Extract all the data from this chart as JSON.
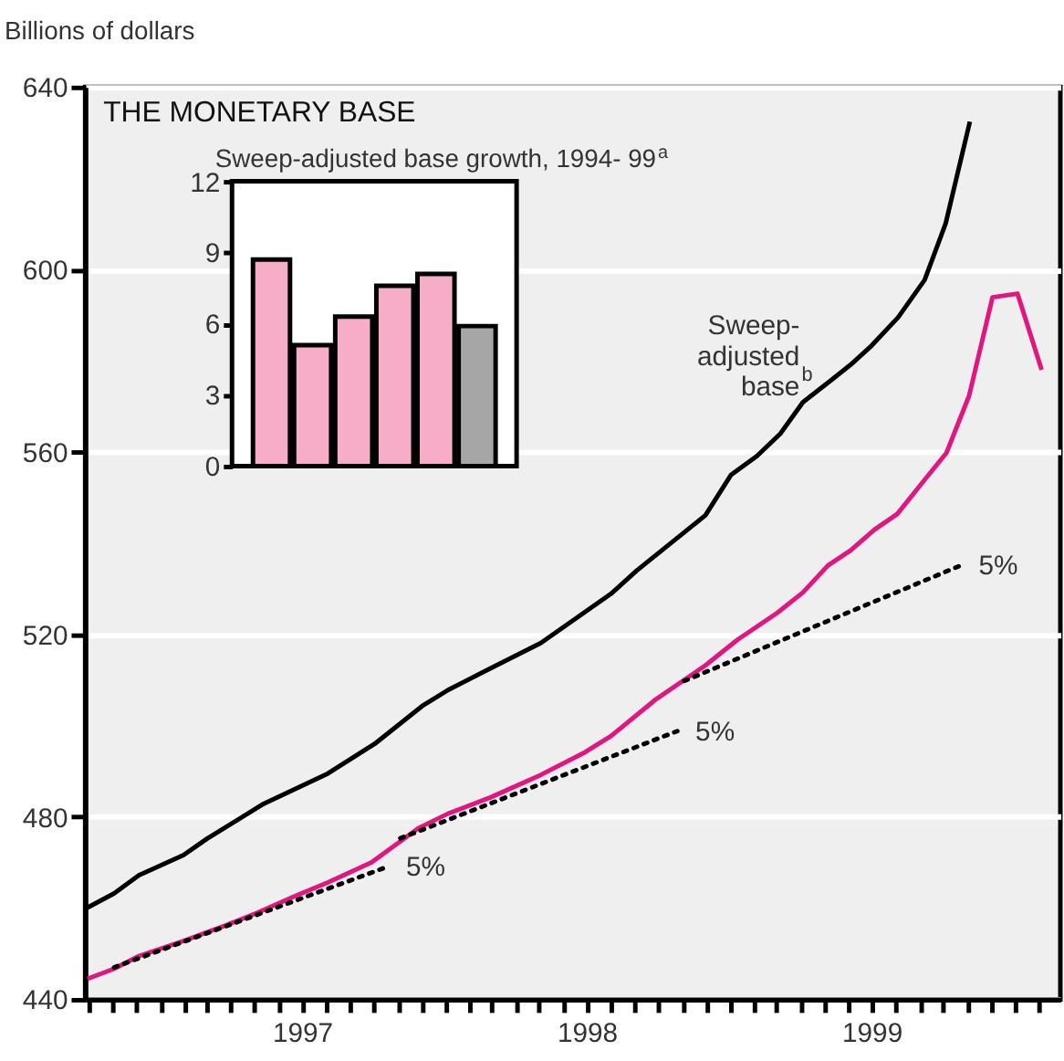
{
  "chart_data": [
    {
      "type": "line",
      "title": "THE MONETARY BASE",
      "ylabel": "Billions of dollars",
      "xlim": [
        "1996-09-26",
        "2000-02-28"
      ],
      "ylim": [
        440,
        640
      ],
      "yticks": [
        440,
        480,
        520,
        560,
        600,
        640
      ],
      "xticks": [
        {
          "value": "1996-10",
          "label": null
        },
        {
          "value": "1996-11",
          "label": null
        },
        {
          "value": "1996-12",
          "label": null
        },
        {
          "value": "1997-01",
          "label": null
        },
        {
          "value": "1997-02",
          "label": null
        },
        {
          "value": "1997-03",
          "label": null
        },
        {
          "value": "1997-04",
          "label": null
        },
        {
          "value": "1997-05",
          "label": null
        },
        {
          "value": "1997-06",
          "label": null
        },
        {
          "value": "1997-07",
          "label": "1997"
        },
        {
          "value": "1997-08",
          "label": null
        },
        {
          "value": "1997-09",
          "label": null
        },
        {
          "value": "1997-10",
          "label": null
        },
        {
          "value": "1997-11",
          "label": null
        },
        {
          "value": "1997-12",
          "label": null
        },
        {
          "value": "1998-01",
          "label": null
        },
        {
          "value": "1998-02",
          "label": null
        },
        {
          "value": "1998-03",
          "label": null
        },
        {
          "value": "1998-04",
          "label": null
        },
        {
          "value": "1998-05",
          "label": null
        },
        {
          "value": "1998-06",
          "label": null
        },
        {
          "value": "1998-07",
          "label": "1998"
        },
        {
          "value": "1998-08",
          "label": null
        },
        {
          "value": "1998-09",
          "label": null
        },
        {
          "value": "1998-10",
          "label": null
        },
        {
          "value": "1998-11",
          "label": null
        },
        {
          "value": "1998-12",
          "label": null
        },
        {
          "value": "1999-01",
          "label": null
        },
        {
          "value": "1999-02",
          "label": null
        },
        {
          "value": "1999-03",
          "label": null
        },
        {
          "value": "1999-04",
          "label": null
        },
        {
          "value": "1999-05",
          "label": null
        },
        {
          "value": "1999-06",
          "label": null
        },
        {
          "value": "1999-07",
          "label": "1999"
        },
        {
          "value": "1999-08",
          "label": null
        },
        {
          "value": "1999-09",
          "label": null
        },
        {
          "value": "1999-10",
          "label": null
        },
        {
          "value": "1999-11",
          "label": null
        },
        {
          "value": "1999-12",
          "label": null
        },
        {
          "value": "2000-01",
          "label": null
        },
        {
          "value": "2000-02",
          "label": null
        }
      ],
      "grid": "y",
      "series": [
        {
          "name": "Sweep-adjusted base$^{b}$",
          "color": "#000000",
          "x": [
            "1996-09-29",
            "1996-11-02",
            "1996-12-04",
            "1997-01-30",
            "1997-03-01",
            "1997-05-13",
            "1997-08-03",
            "1997-10-02",
            "1997-12-02",
            "1998-01-04",
            "1998-02-28",
            "1998-05-03",
            "1998-08-01",
            "1998-09-03",
            "1998-11-30",
            "1999-01-02",
            "1999-02-04",
            "1999-03-06",
            "1999-04-04",
            "1999-05-10",
            "1999-06-04",
            "1999-07-01",
            "1999-08-04",
            "1999-09-07",
            "1999-10-04",
            "1999-11-04"
          ],
          "values": [
            460.1,
            463.2,
            467.2,
            471.6,
            475.2,
            482.9,
            489.5,
            496.0,
            504.3,
            507.8,
            512.6,
            518.1,
            528.9,
            534.0,
            546.1,
            555.0,
            559.1,
            564.0,
            570.9,
            575.7,
            579.1,
            583.3,
            589.5,
            597.7,
            610.1,
            632.4
          ]
        },
        {
          "color": "#e2167f",
          "x": [
            "1996-09-29",
            "1996-11-02",
            "1996-12-04",
            "1997-01-30",
            "1997-03-25",
            "1997-05-05",
            "1997-06-23",
            "1997-08-03",
            "1997-09-28",
            "1997-11-28",
            "1998-01-04",
            "1998-02-28",
            "1998-05-03",
            "1998-06-29",
            "1998-08-01",
            "1998-09-27",
            "1998-11-30",
            "1999-01-10",
            "1999-03-02",
            "1999-04-04",
            "1999-05-06",
            "1999-06-04",
            "1999-07-05",
            "1999-08-03",
            "1999-08-30",
            "1999-10-05",
            "1999-11-03",
            "1999-12-03",
            "2000-01-04",
            "2000-02-04"
          ],
          "values": [
            444.5,
            446.7,
            449.5,
            452.8,
            456.2,
            459.0,
            462.7,
            465.6,
            470.0,
            477.6,
            480.7,
            484.3,
            489.2,
            494.2,
            497.7,
            505.7,
            513.2,
            518.8,
            524.7,
            529.2,
            535.1,
            538.4,
            543.0,
            546.4,
            552.2,
            559.8,
            572.3,
            593.9,
            594.7,
            578.0
          ]
        },
        {
          "type": "line",
          "color": "#000000",
          "line_style": "dotted",
          "x": [
            "1996-11-02",
            "1997-10-19"
          ],
          "values": [
            447.0,
            469.1
          ]
        },
        {
          "type": "line",
          "color": "#000000",
          "line_style": "dotted",
          "x": [
            "1997-11-04",
            "1998-10-25"
          ],
          "values": [
            475.3,
            498.8
          ]
        },
        {
          "type": "line",
          "color": "#000000",
          "line_style": "dotted",
          "x": [
            "1998-11-03",
            "1999-10-23"
          ],
          "values": [
            509.8,
            535.1
          ]
        }
      ],
      "annotations": [
        "5%",
        "5%",
        "5%"
      ]
    },
    {
      "type": "bar",
      "title": "Sweep-adjusted base growth, 1994- 99$^{a}$",
      "categories": [
        null,
        null,
        null,
        null,
        null,
        null
      ],
      "values": [
        8.7,
        5.1,
        6.3,
        7.6,
        8.1,
        5.9
      ],
      "colors": [
        "#f7adc8",
        "#f7adc8",
        "#f7adc8",
        "#f7adc8",
        "#f7adc8",
        "#a6a6a6"
      ],
      "ylim": [
        0,
        12
      ],
      "yticks": [
        0,
        3,
        6,
        9,
        12
      ]
    }
  ]
}
